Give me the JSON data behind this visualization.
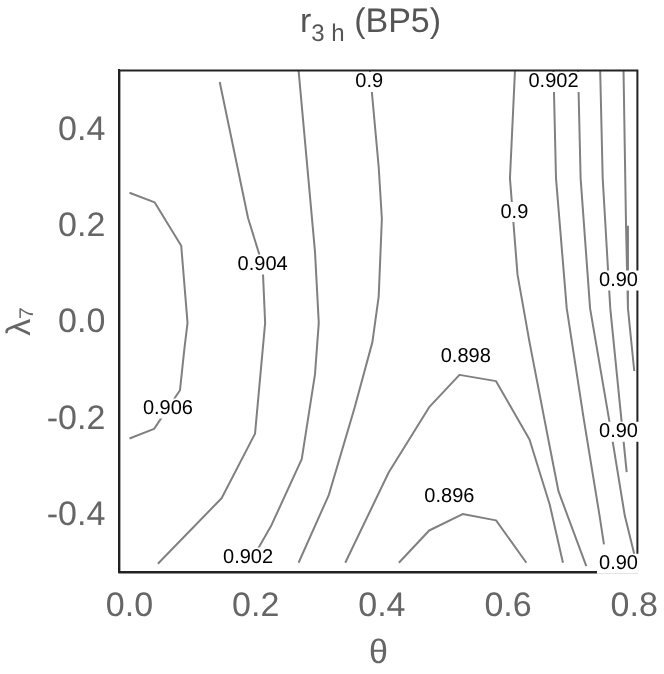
{
  "chart_data": {
    "type": "line",
    "title": "r$_{3 h}$ (BP5)",
    "xlabel": "θ",
    "ylabel": "λ₇",
    "xlim": [
      -0.016,
      0.805
    ],
    "ylim": [
      -0.518,
      0.524
    ],
    "xticks": [
      {
        "value": 0,
        "label": "0.0"
      },
      {
        "value": 0.2,
        "label": "0.2"
      },
      {
        "value": 0.4,
        "label": "0.4"
      },
      {
        "value": 0.6,
        "label": "0.6"
      },
      {
        "value": 0.8,
        "label": "0.8"
      }
    ],
    "yticks": [
      {
        "value": -0.4,
        "label": "-0.4"
      },
      {
        "value": -0.2,
        "label": "-0.2"
      },
      {
        "value": 0,
        "label": "0.0"
      },
      {
        "value": 0.2,
        "label": "0.2"
      },
      {
        "value": 0.4,
        "label": "0.4"
      }
    ],
    "grid": false,
    "legend": false,
    "marker": "none",
    "line_style": "solid",
    "series": [
      {
        "color": "#808080",
        "x": [
          0,
          0.04,
          0.082,
          0.092,
          0.087,
          0.08,
          0.039,
          0
        ],
        "values": [
          0.27,
          0.25,
          0.16,
          0,
          -0.054,
          -0.14,
          -0.22,
          -0.24
        ]
      },
      {
        "color": "#808080",
        "x": [
          0.143,
          0.188,
          0.211,
          0.215,
          0.199,
          0.146,
          0.045
        ],
        "values": [
          0.5,
          0.217,
          0.12,
          0,
          -0.23,
          -0.364,
          -0.5
        ]
      },
      {
        "color": "#808080",
        "x": [
          0.268,
          0.294,
          0.3,
          0.294,
          0.273,
          0.225,
          0.188
        ],
        "values": [
          0.524,
          0.148,
          0,
          -0.107,
          -0.283,
          -0.42,
          -0.505
        ]
      },
      {
        "color": "#808080",
        "x": [
          0.381,
          0.395,
          0.4,
          0.395,
          0.385,
          0.357,
          0.316,
          0.268
        ],
        "values": [
          0.524,
          0.323,
          0.216,
          0.055,
          -0.04,
          -0.175,
          -0.357,
          -0.498
        ]
      },
      {
        "color": "#808080",
        "x": [
          0.342,
          0.411,
          0.475,
          0.523,
          0.581,
          0.634,
          0.666,
          0.687
        ],
        "values": [
          -0.498,
          -0.31,
          -0.175,
          -0.108,
          -0.121,
          -0.242,
          -0.377,
          -0.498
        ]
      },
      {
        "color": "#808080",
        "x": [
          0.427,
          0.475,
          0.528,
          0.581,
          0.629
        ],
        "values": [
          -0.498,
          -0.431,
          -0.397,
          -0.41,
          -0.498
        ]
      },
      {
        "color": "#808080",
        "x": [
          0.611,
          0.603,
          0.615,
          0.634,
          0.665,
          0.68,
          0.724
        ],
        "values": [
          0.524,
          0.3,
          0.1,
          -0.04,
          -0.25,
          -0.35,
          -0.505
        ]
      },
      {
        "color": "#808080",
        "x": [
          0.672,
          0.676,
          0.693,
          0.72,
          0.745,
          0.752
        ],
        "values": [
          0.524,
          0.3,
          0.03,
          -0.2,
          -0.4,
          -0.46
        ]
      },
      {
        "color": "#808080",
        "x": [
          0.711,
          0.715,
          0.73,
          0.76,
          0.785,
          0.8
        ],
        "values": [
          0.524,
          0.3,
          0.03,
          -0.2,
          -0.4,
          -0.48
        ]
      },
      {
        "color": "#808080",
        "x": [
          0.746,
          0.75,
          0.762,
          0.788
        ],
        "values": [
          0.524,
          0.3,
          0.03,
          -0.31
        ]
      },
      {
        "color": "#808080",
        "x": [
          0.783,
          0.787,
          0.79,
          0.8
        ],
        "values": [
          0.524,
          0.2,
          0.03,
          -0.1
        ]
      }
    ],
    "annotations": [
      {
        "text": "0.906",
        "x": 0.061,
        "y": -0.178
      },
      {
        "text": "0.904",
        "x": 0.211,
        "y": 0.121
      },
      {
        "text": "0.902",
        "x": 0.188,
        "y": -0.487
      },
      {
        "text": "0.9",
        "x": 0.38,
        "y": 0.5
      },
      {
        "text": "0.898",
        "x": 0.533,
        "y": -0.07
      },
      {
        "text": "0.896",
        "x": 0.507,
        "y": -0.36
      },
      {
        "text": "0.9",
        "x": 0.61,
        "y": 0.23
      },
      {
        "text": "0.902",
        "x": 0.672,
        "y": 0.5
      },
      {
        "text": "0.90",
        "x": 0.775,
        "y": 0.088
      },
      {
        "text": "0.90",
        "x": 0.775,
        "y": -0.226
      },
      {
        "text": "0.90",
        "x": 0.775,
        "y": -0.5
      }
    ]
  }
}
